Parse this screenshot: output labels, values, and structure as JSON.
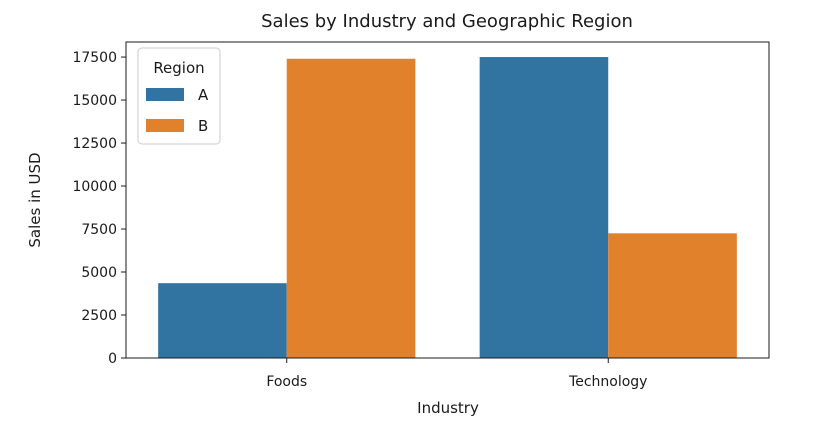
{
  "chart_data": {
    "type": "bar",
    "title": "Sales by Industry and Geographic Region",
    "xlabel": "Industry",
    "ylabel": "Sales in USD",
    "categories": [
      "Foods",
      "Technology"
    ],
    "series": [
      {
        "name": "A",
        "values": [
          4350,
          17500
        ],
        "color": "#3274a1"
      },
      {
        "name": "B",
        "values": [
          17400,
          7250
        ],
        "color": "#e1812c"
      }
    ],
    "ylim": [
      0,
      18375
    ],
    "yticks": [
      "0",
      "2500",
      "5000",
      "7500",
      "10000",
      "12500",
      "15000",
      "17500"
    ],
    "legend": {
      "title": "Region",
      "position": "top-left"
    },
    "grid": false
  }
}
